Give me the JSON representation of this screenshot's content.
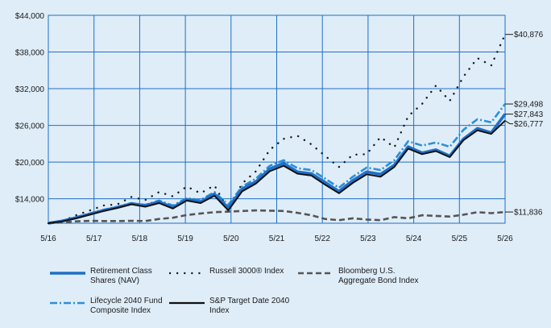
{
  "chart_data": {
    "type": "line",
    "x_labels": [
      "5/16",
      "5/17",
      "5/18",
      "5/19",
      "5/20",
      "5/21",
      "5/22",
      "5/23",
      "5/24",
      "5/25",
      "5/26"
    ],
    "y_ticks": [
      "$14,000",
      "$20,000",
      "$26,000",
      "$32,000",
      "$38,000",
      "$44,000"
    ],
    "ylim": [
      10000,
      44000
    ],
    "grid": true,
    "legend_position": "bottom",
    "series": [
      {
        "name": "Retirement Class Shares (NAV)",
        "color": "#1f6fc5",
        "style": "thick-solid",
        "end_label": "$27,843",
        "values": [
          10000,
          10350,
          10900,
          11500,
          12100,
          12600,
          13200,
          12900,
          13500,
          12600,
          13900,
          13500,
          14800,
          12500,
          15600,
          16800,
          18900,
          19800,
          18400,
          18100,
          16700,
          15200,
          17000,
          18400,
          18000,
          19500,
          22500,
          21500,
          22000,
          21000,
          23800,
          25500,
          24800,
          27843
        ]
      },
      {
        "name": "Russell 3000® Index",
        "name_sup": "®",
        "color": "#1a1a1a",
        "style": "dotted",
        "end_label": "$40,876",
        "values": [
          10000,
          10300,
          11300,
          12100,
          12900,
          13100,
          14300,
          13800,
          15100,
          14400,
          16000,
          14900,
          16200,
          12200,
          16500,
          18500,
          22000,
          23800,
          24300,
          22900,
          21000,
          19200,
          21200,
          21300,
          24100,
          22400,
          27500,
          29500,
          32500,
          30000,
          34000,
          37000,
          35800,
          40876
        ]
      },
      {
        "name": "Bloomberg U.S. Aggregate Bond Index",
        "color": "#555555",
        "style": "dashed",
        "end_label": "$11,836",
        "values": [
          10000,
          10150,
          10300,
          10400,
          10350,
          10350,
          10400,
          10350,
          10700,
          10900,
          11350,
          11600,
          11800,
          11900,
          12000,
          12100,
          12050,
          12000,
          11700,
          11300,
          10700,
          10500,
          10800,
          10600,
          10500,
          11000,
          10800,
          11300,
          11200,
          11100,
          11400,
          11800,
          11650,
          11836
        ]
      },
      {
        "name": "Lifecycle 2040 Fund Composite Index",
        "color": "#2b8fdc",
        "style": "dashdot",
        "end_label": "$29,498",
        "values": [
          10000,
          10400,
          11000,
          11600,
          12200,
          12700,
          13300,
          13000,
          13700,
          12900,
          14100,
          13800,
          15100,
          13000,
          16000,
          17300,
          19400,
          20300,
          19000,
          18700,
          17300,
          15800,
          17600,
          19100,
          18700,
          20300,
          23400,
          22700,
          23200,
          22500,
          25300,
          27000,
          26500,
          29498
        ]
      },
      {
        "name": "S&P Target Date 2040 Index",
        "color": "#111111",
        "style": "solid",
        "end_label": "$26,777",
        "values": [
          10000,
          10300,
          10800,
          11400,
          12000,
          12500,
          13100,
          12700,
          13300,
          12400,
          13700,
          13300,
          14500,
          12100,
          15200,
          16500,
          18500,
          19400,
          18100,
          17800,
          16300,
          14900,
          16600,
          18000,
          17600,
          19200,
          22200,
          21300,
          21800,
          20800,
          23600,
          25200,
          24600,
          26777
        ]
      }
    ],
    "legend": [
      {
        "line1": "Retirement Class",
        "line2": "Shares (NAV)"
      },
      {
        "line1": "Russell 3000® Index",
        "line2": ""
      },
      {
        "line1": "Bloomberg U.S.",
        "line2": "Aggregate Bond Index"
      },
      {
        "line1": "Lifecycle 2040 Fund",
        "line2": "Composite Index"
      },
      {
        "line1": "S&P Target Date 2040",
        "line2": "Index"
      }
    ]
  }
}
